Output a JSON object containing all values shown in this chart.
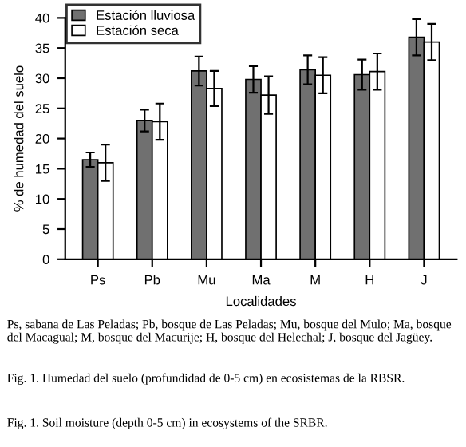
{
  "chart_data": {
    "type": "bar",
    "xlabel": "Localidades",
    "ylabel": "% de humedad del suelo",
    "categories": [
      "Ps",
      "Pb",
      "Mu",
      "Ma",
      "M",
      "H",
      "J"
    ],
    "series": [
      {
        "name": "Estación lluviosa",
        "color": "#707070",
        "values": [
          16.5,
          23,
          31.2,
          29.8,
          31.4,
          30.6,
          36.8
        ],
        "errors": [
          1.2,
          1.8,
          2.4,
          2.2,
          2.4,
          2.5,
          3
        ]
      },
      {
        "name": "Estación seca",
        "color": "#ffffff",
        "values": [
          16,
          22.8,
          28.3,
          27.2,
          30.5,
          31.1,
          36
        ],
        "errors": [
          3,
          3,
          2.9,
          3.1,
          3,
          3,
          3
        ]
      }
    ],
    "ylim": [
      0,
      40
    ],
    "yticks": [
      0,
      5,
      10,
      15,
      20,
      25,
      30,
      35,
      40
    ],
    "grid": false,
    "legend": "top left",
    "annotations": [
      "Ps, sabana de Las Peladas; Pb, bosque de Las Peladas; Mu, bosque del Mulo; Ma, bosque del Macagual; M, bosque del Macurije; H, bosque del Helechal; J, bosque del Jagüey.",
      "Fig. 1. Humedad del suelo (profundidad de 0-5 cm) en ecosistemas de la RBSR.",
      "Fig. 1. Soil moisture (depth 0-5 cm) in ecosystems of the SRBR."
    ]
  }
}
